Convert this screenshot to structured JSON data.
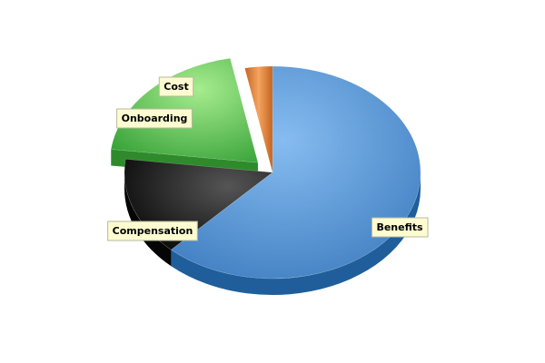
{
  "chart_data": {
    "type": "pie",
    "style": "3d-exploded",
    "legend": "none",
    "slices": [
      {
        "label": "Benefits",
        "value": 62,
        "color": "#4a86c8",
        "exploded": false
      },
      {
        "label": "Compensation",
        "value": 15,
        "color": "#222222",
        "exploded": false
      },
      {
        "label": "Onboarding",
        "value": 20,
        "color": "#4cb648",
        "exploded": true
      },
      {
        "label": "Cost",
        "value": 3,
        "color": "#e07a2c",
        "exploded": false
      }
    ]
  }
}
